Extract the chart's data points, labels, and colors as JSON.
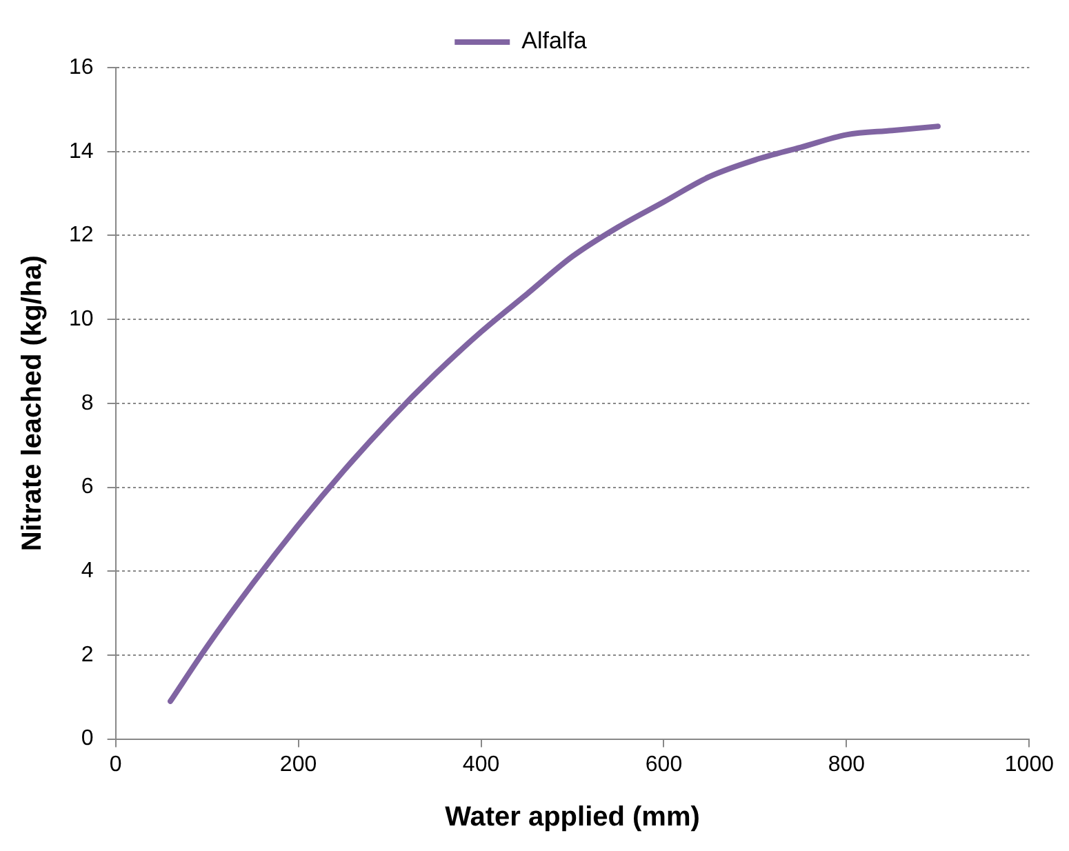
{
  "chart_data": {
    "type": "line",
    "xlabel": "Water applied (mm)",
    "ylabel": "Nitrate leached (kg/ha)",
    "x": [
      60,
      100,
      150,
      200,
      250,
      300,
      350,
      400,
      450,
      500,
      550,
      600,
      650,
      700,
      750,
      800,
      850,
      900
    ],
    "series": [
      {
        "name": "Alfalfa",
        "color": "#8064a2",
        "values": [
          0.9,
          2.2,
          3.7,
          5.1,
          6.4,
          7.6,
          8.7,
          9.7,
          10.6,
          11.5,
          12.2,
          12.8,
          13.4,
          13.8,
          14.1,
          14.4,
          14.5,
          14.6
        ]
      }
    ],
    "xlim": [
      0,
      1000
    ],
    "xticks": [
      0,
      200,
      400,
      600,
      800,
      1000
    ],
    "ylim": [
      0,
      16
    ],
    "yticks": [
      0,
      2,
      4,
      6,
      8,
      10,
      12,
      14,
      16
    ],
    "grid": "y",
    "legend": "top",
    "marker": "none",
    "line_style": "solid"
  }
}
